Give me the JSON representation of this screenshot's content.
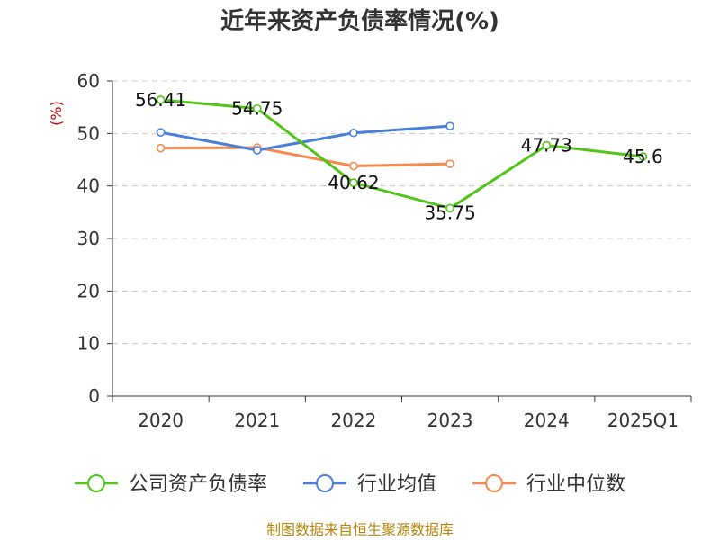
{
  "chart_data": {
    "type": "line",
    "title": "近年来资产负债率情况(%)",
    "ylabel": "(%)",
    "xlabel": "",
    "categories": [
      "2020",
      "2021",
      "2022",
      "2023",
      "2024",
      "2025Q1"
    ],
    "ylim": [
      0,
      60
    ],
    "yticks": [
      0,
      10,
      20,
      30,
      40,
      50,
      60
    ],
    "grid": true,
    "legend_position": "bottom",
    "series": [
      {
        "name": "公司资产负债率",
        "color": "#52c41a",
        "values": [
          56.41,
          54.75,
          40.62,
          35.75,
          47.73,
          45.6
        ],
        "labels": [
          "56.41",
          "54.75",
          "40.62",
          "35.75",
          "47.73",
          "45.6"
        ]
      },
      {
        "name": "行业均值",
        "color": "#4a7fd9",
        "values": [
          50.2,
          46.8,
          50.1,
          51.4,
          null,
          null
        ]
      },
      {
        "name": "行业中位数",
        "color": "#f5894f",
        "values": [
          47.2,
          47.3,
          43.8,
          44.2,
          null,
          null
        ]
      }
    ],
    "source": "制图数据来自恒生聚源数据库"
  }
}
